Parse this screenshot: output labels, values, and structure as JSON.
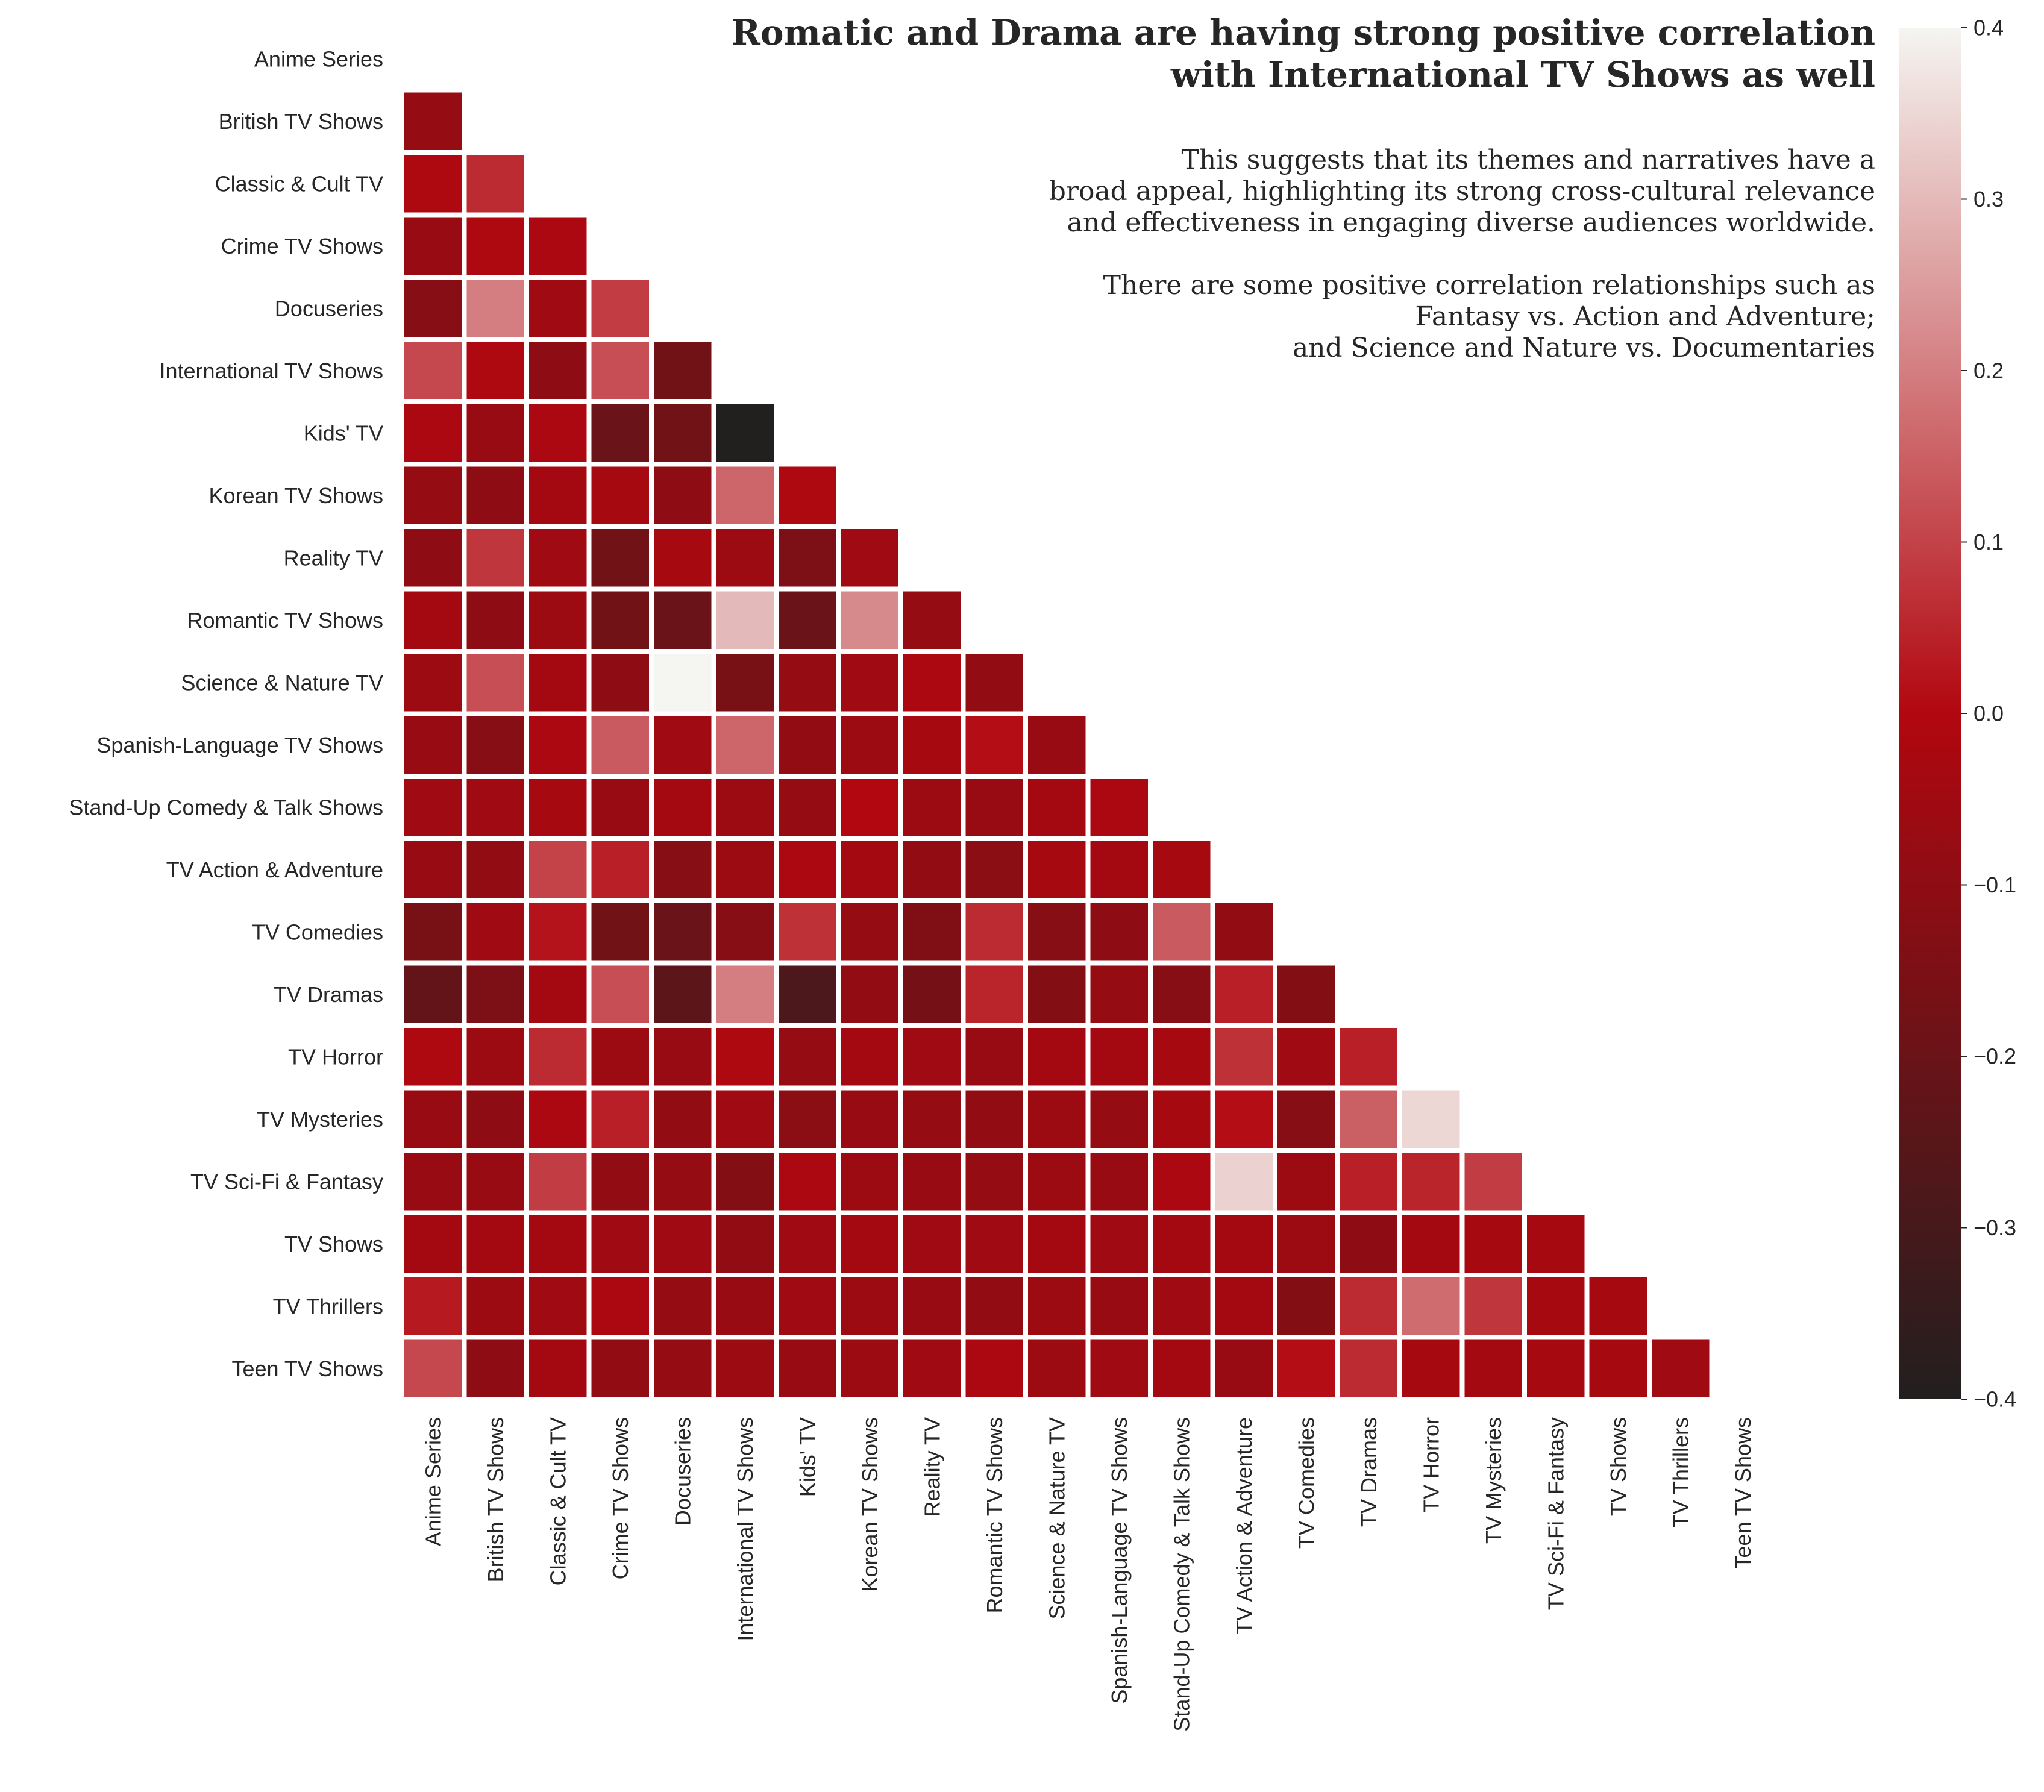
{
  "chart_data": {
    "type": "heatmap",
    "title_lines": [
      "Romatic and Drama are having strong positive correlation",
      "with International TV Shows as well"
    ],
    "annotation_lines": [
      "This suggests that its themes and narratives have a",
      "broad appeal, highlighting its strong cross-cultural relevance",
      "and effectiveness in engaging diverse audiences worldwide.",
      "",
      "There are some positive correlation relationships such as",
      "Fantasy vs. Action and Adventure;",
      "and Science and Nature vs. Documentaries"
    ],
    "labels": [
      "Anime Series",
      "British TV Shows",
      "Classic & Cult TV",
      "Crime TV Shows",
      "Docuseries",
      "International TV Shows",
      "Kids' TV",
      "Korean TV Shows",
      "Reality TV",
      "Romantic TV Shows",
      "Science & Nature TV",
      "Spanish-Language TV Shows",
      "Stand-Up Comedy & Talk Shows",
      "TV Action & Adventure",
      "TV Comedies",
      "TV Dramas",
      "TV Horror",
      "TV Mysteries",
      "TV Sci-Fi & Fantasy",
      "TV Shows",
      "TV Thrillers",
      "Teen TV Shows"
    ],
    "mask": "lower-triangle (diagonal hidden)",
    "values": [
      [],
      [
        -0.08
      ],
      [
        -0.01,
        0.06
      ],
      [
        -0.07,
        -0.01,
        -0.02
      ],
      [
        -0.12,
        0.2,
        -0.05,
        0.09
      ],
      [
        0.11,
        -0.01,
        -0.1,
        0.12,
        -0.18
      ],
      [
        -0.02,
        -0.07,
        -0.02,
        -0.2,
        -0.18,
        -0.4
      ],
      [
        -0.08,
        -0.1,
        -0.04,
        -0.03,
        -0.1,
        0.16,
        -0.01
      ],
      [
        -0.1,
        0.08,
        -0.05,
        -0.18,
        -0.03,
        -0.06,
        -0.15,
        -0.05
      ],
      [
        -0.04,
        -0.1,
        -0.06,
        -0.18,
        -0.2,
        0.3,
        -0.2,
        0.22,
        -0.08
      ],
      [
        -0.06,
        0.12,
        -0.04,
        -0.1,
        0.4,
        -0.16,
        -0.08,
        -0.05,
        -0.02,
        -0.09
      ],
      [
        -0.07,
        -0.12,
        -0.02,
        0.14,
        -0.05,
        0.16,
        -0.09,
        -0.06,
        -0.03,
        0.01,
        -0.07
      ],
      [
        -0.05,
        -0.05,
        -0.03,
        -0.07,
        -0.04,
        -0.06,
        -0.08,
        0.0,
        -0.06,
        -0.07,
        -0.04,
        -0.02
      ],
      [
        -0.07,
        -0.09,
        0.1,
        0.04,
        -0.12,
        -0.06,
        -0.02,
        -0.04,
        -0.09,
        -0.11,
        -0.03,
        -0.04,
        -0.03
      ],
      [
        -0.16,
        -0.05,
        0.02,
        -0.18,
        -0.2,
        -0.12,
        0.07,
        -0.08,
        -0.14,
        0.06,
        -0.12,
        -0.1,
        0.14,
        -0.09
      ],
      [
        -0.22,
        -0.15,
        -0.04,
        0.12,
        -0.24,
        0.2,
        -0.28,
        -0.09,
        -0.17,
        0.05,
        -0.13,
        -0.08,
        -0.12,
        0.04,
        -0.13
      ],
      [
        -0.01,
        -0.06,
        0.06,
        -0.06,
        -0.07,
        -0.01,
        -0.08,
        -0.04,
        -0.05,
        -0.07,
        -0.04,
        -0.04,
        -0.03,
        0.07,
        -0.05,
        0.04
      ],
      [
        -0.07,
        -0.1,
        -0.02,
        0.04,
        -0.09,
        -0.05,
        -0.11,
        -0.07,
        -0.08,
        -0.09,
        -0.06,
        -0.08,
        -0.03,
        0.01,
        -0.12,
        0.15,
        0.35
      ],
      [
        -0.07,
        -0.07,
        0.09,
        -0.09,
        -0.08,
        -0.13,
        -0.02,
        -0.06,
        -0.07,
        -0.08,
        -0.06,
        -0.07,
        -0.02,
        0.34,
        -0.06,
        0.04,
        0.05,
        0.09
      ],
      [
        -0.04,
        -0.04,
        -0.04,
        -0.05,
        -0.05,
        -0.09,
        -0.05,
        -0.04,
        -0.05,
        -0.05,
        -0.04,
        -0.05,
        -0.04,
        -0.04,
        -0.06,
        -0.1,
        -0.04,
        -0.03,
        -0.03
      ],
      [
        0.03,
        -0.06,
        -0.05,
        -0.02,
        -0.08,
        -0.07,
        -0.05,
        -0.06,
        -0.07,
        -0.09,
        -0.06,
        -0.07,
        -0.05,
        -0.04,
        -0.13,
        0.06,
        0.17,
        0.08,
        -0.03,
        -0.03
      ],
      [
        0.11,
        -0.1,
        -0.04,
        -0.09,
        -0.08,
        -0.06,
        -0.07,
        -0.06,
        -0.05,
        -0.02,
        -0.06,
        -0.05,
        -0.04,
        -0.07,
        0.01,
        0.06,
        -0.03,
        -0.04,
        -0.03,
        -0.03,
        -0.05
      ]
    ],
    "colorbar": {
      "range": [
        -0.4,
        0.4
      ],
      "ticks": [
        -0.4,
        -0.3,
        -0.2,
        -0.1,
        0.0,
        0.1,
        0.2,
        0.3,
        0.4
      ],
      "tick_labels": [
        "−0.4",
        "−0.3",
        "−0.2",
        "−0.1",
        "0.0",
        "0.1",
        "0.2",
        "0.3",
        "0.4"
      ],
      "colors": [
        {
          "at": 0.0,
          "color": "#221f1f"
        },
        {
          "at": 0.5,
          "color": "#b20710"
        },
        {
          "at": 1.0,
          "color": "#f5f5f1"
        }
      ]
    },
    "grid": false,
    "legend": "colorbar right"
  }
}
